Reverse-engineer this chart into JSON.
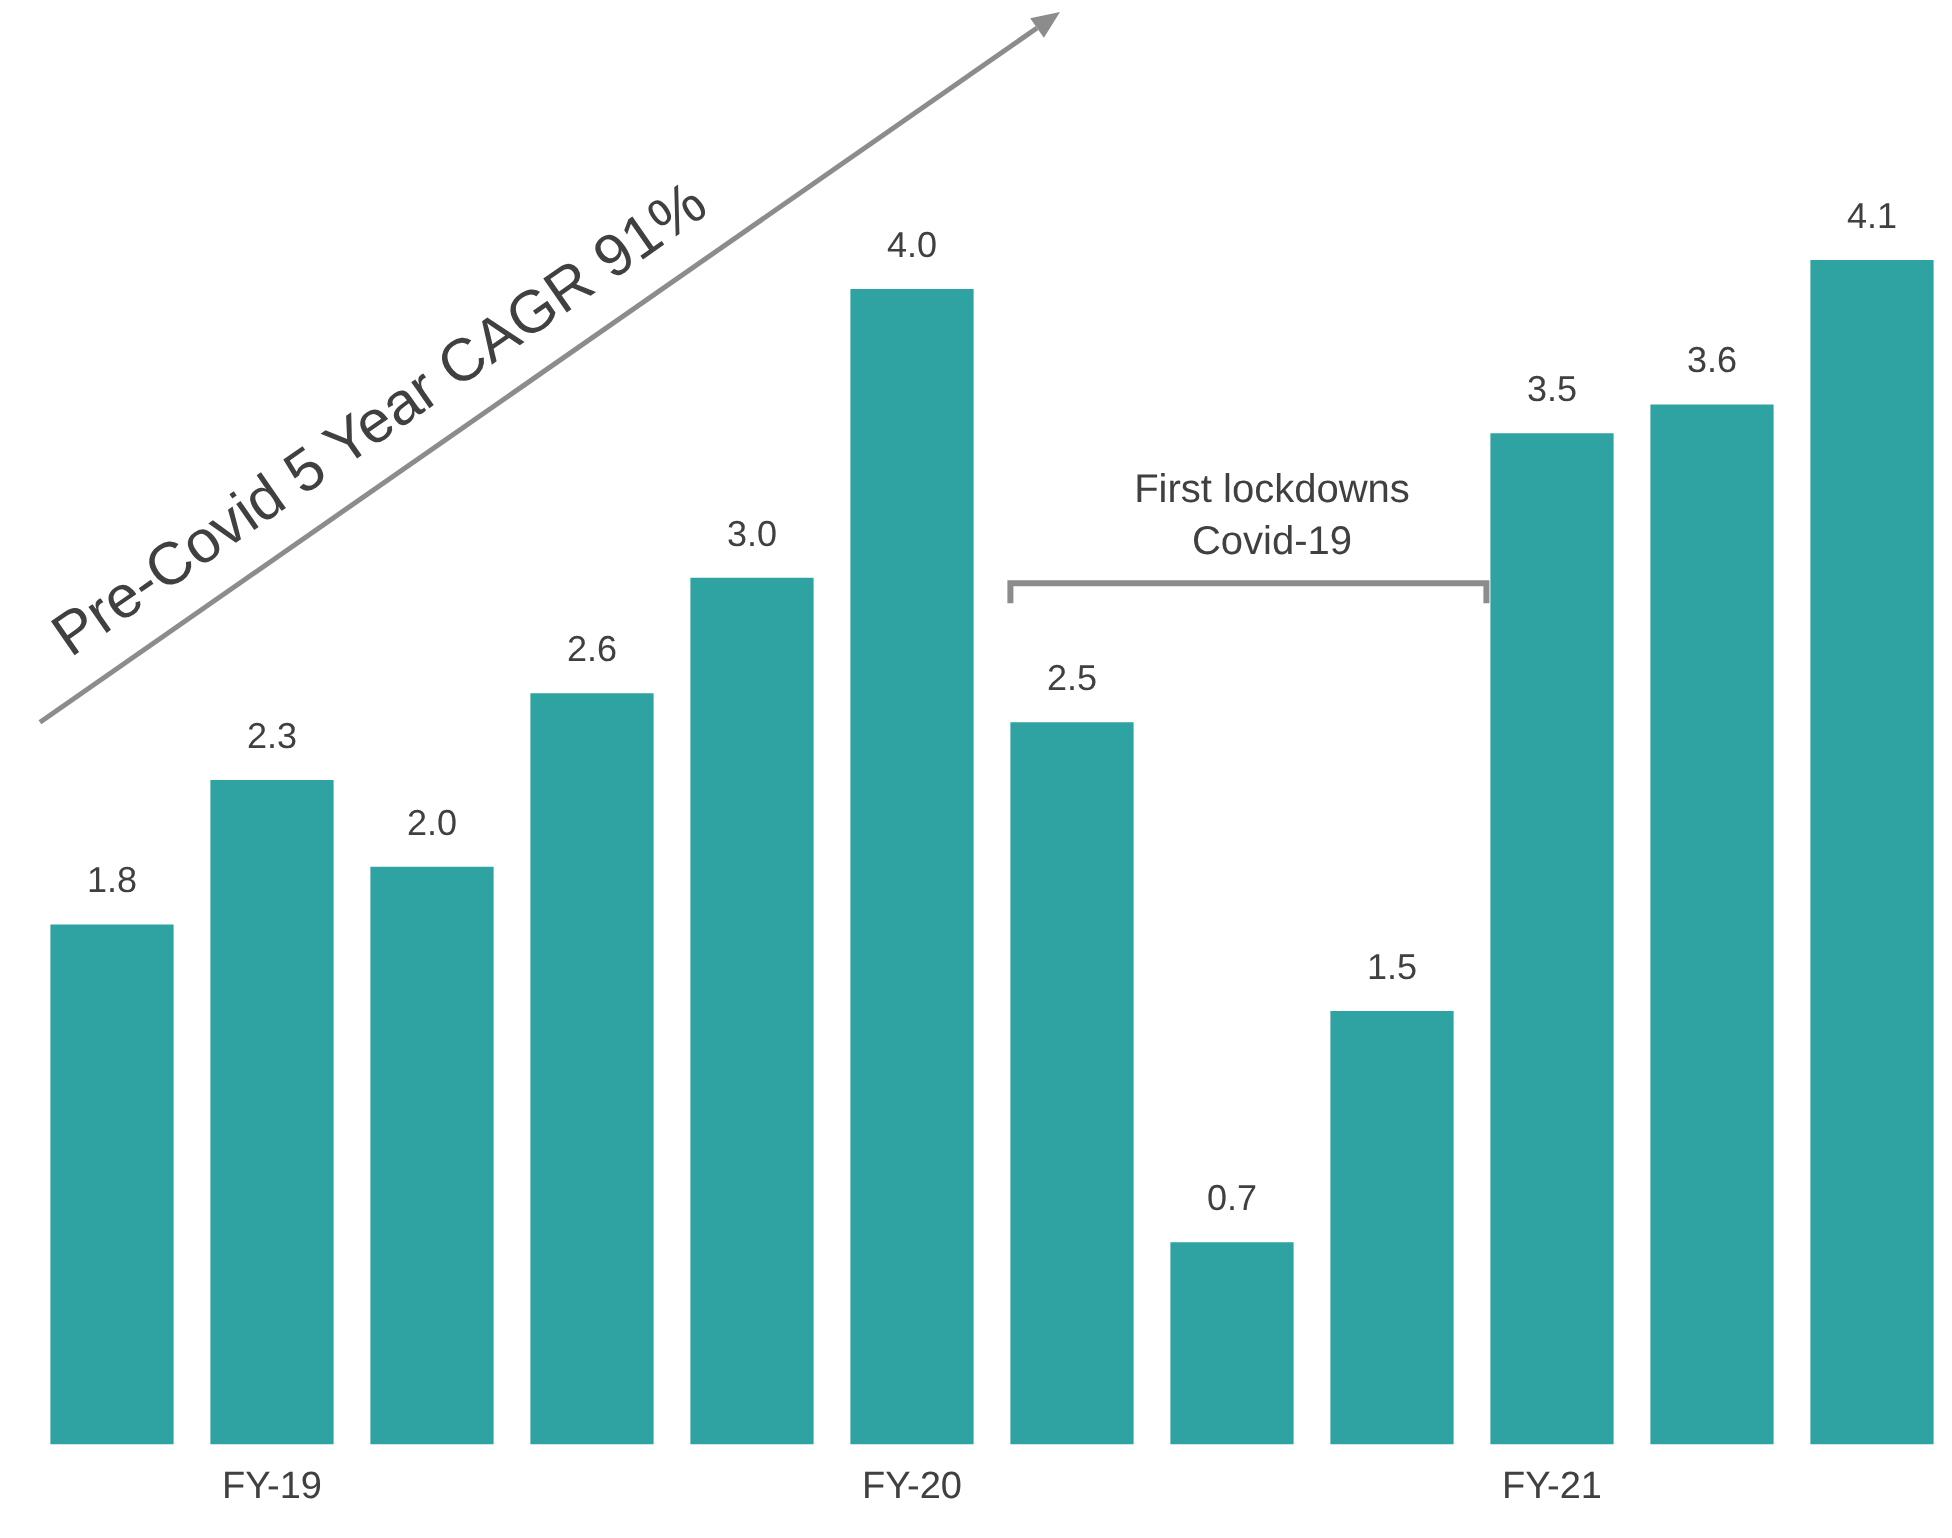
{
  "chart_data": {
    "type": "bar",
    "categories": [
      null,
      "FY-19",
      null,
      null,
      null,
      "FY-20",
      null,
      null,
      null,
      "FY-21",
      null,
      null
    ],
    "values": [
      1.8,
      2.3,
      2.0,
      2.6,
      3.0,
      4.0,
      2.5,
      0.7,
      1.5,
      3.5,
      3.6,
      4.1
    ],
    "color": "#2ea3a1",
    "value_labels": [
      "1.8",
      "2.3",
      "2.0",
      "2.6",
      "3.0",
      "4.0",
      "2.5",
      "0.7",
      "1.5",
      "3.5",
      "3.6",
      "4.1"
    ],
    "tick_labels": "x",
    "grid": false,
    "legend": false,
    "annotations": [
      "Pre-Covid 5 Year CAGR 91%",
      "First lockdowns\nCovid-19"
    ]
  }
}
